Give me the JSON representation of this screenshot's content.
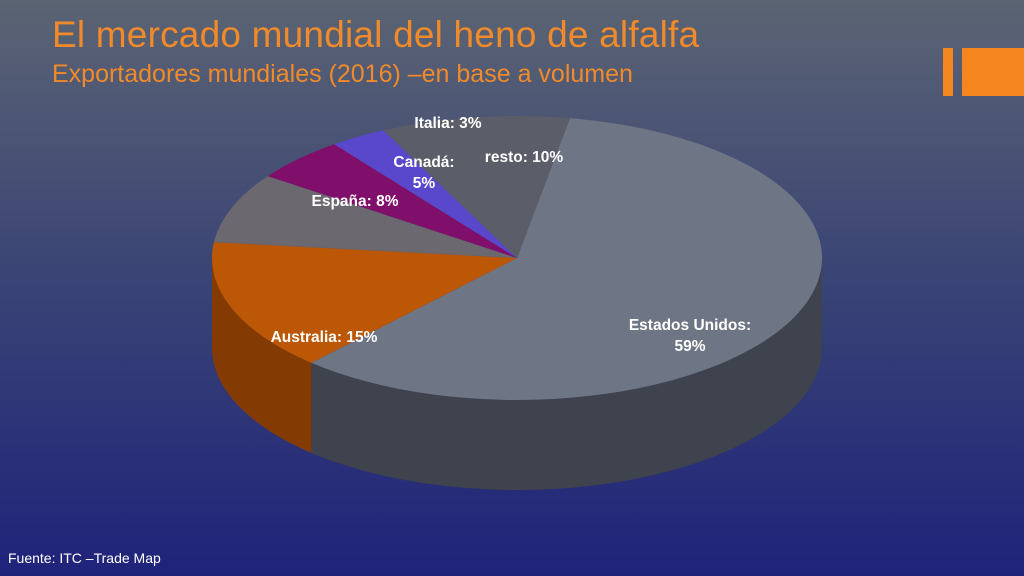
{
  "slide": {
    "title": "El mercado mundial del heno de alfalfa",
    "subtitle": "Exportadores mundiales (2016) –en base a volumen",
    "source": "Fuente: ITC –Trade Map"
  },
  "chart_data": {
    "type": "pie",
    "style": "3d",
    "title": "",
    "unit": "%",
    "slices": [
      {
        "name": "Estados Unidos",
        "value": 59,
        "label": [
          "Estados Unidos:",
          "59%"
        ],
        "color": "#6e7584",
        "side_color": "#3f434e"
      },
      {
        "name": "Australia",
        "value": 15,
        "label": [
          "Australia: 15%"
        ],
        "color": "#bc5706",
        "side_color": "#843b03"
      },
      {
        "name": "España",
        "value": 8,
        "label": [
          "España: 8%"
        ],
        "color": "#6b6870",
        "side_color": "#48464d"
      },
      {
        "name": "Canadá",
        "value": 5,
        "label": [
          "Canadá:",
          "5%"
        ],
        "color": "#800f6b",
        "side_color": "#560948"
      },
      {
        "name": "Italia",
        "value": 3,
        "label": [
          "Italia: 3%"
        ],
        "color": "#5a48cc",
        "side_color": "#3a2e8a"
      },
      {
        "name": "resto",
        "value": 10,
        "label": [
          "resto: 10%"
        ],
        "color": "#5b5d69",
        "side_color": "#3b3d45"
      }
    ]
  }
}
